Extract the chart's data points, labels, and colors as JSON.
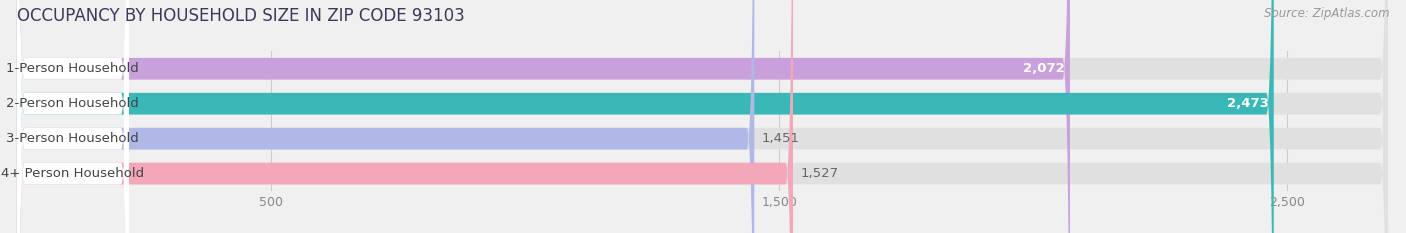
{
  "title": "OCCUPANCY BY HOUSEHOLD SIZE IN ZIP CODE 93103",
  "source": "Source: ZipAtlas.com",
  "categories": [
    "1-Person Household",
    "2-Person Household",
    "3-Person Household",
    "4+ Person Household"
  ],
  "values": [
    2072,
    2473,
    1451,
    1527
  ],
  "bar_colors": [
    "#c9a0dc",
    "#3ab8b8",
    "#b0b8e8",
    "#f4a7b9"
  ],
  "value_inside": [
    true,
    true,
    false,
    false
  ],
  "value_colors_inside": [
    "white",
    "white",
    "#666666",
    "#666666"
  ],
  "xlim_max": 2700,
  "xticks": [
    500,
    1500,
    2500
  ],
  "background_color": "#f0f0f0",
  "bar_bg_color": "#e0e0e0",
  "label_bg_color": "#ffffff",
  "title_fontsize": 12,
  "source_fontsize": 8.5,
  "label_fontsize": 9.5,
  "value_fontsize": 9.5,
  "tick_fontsize": 9
}
